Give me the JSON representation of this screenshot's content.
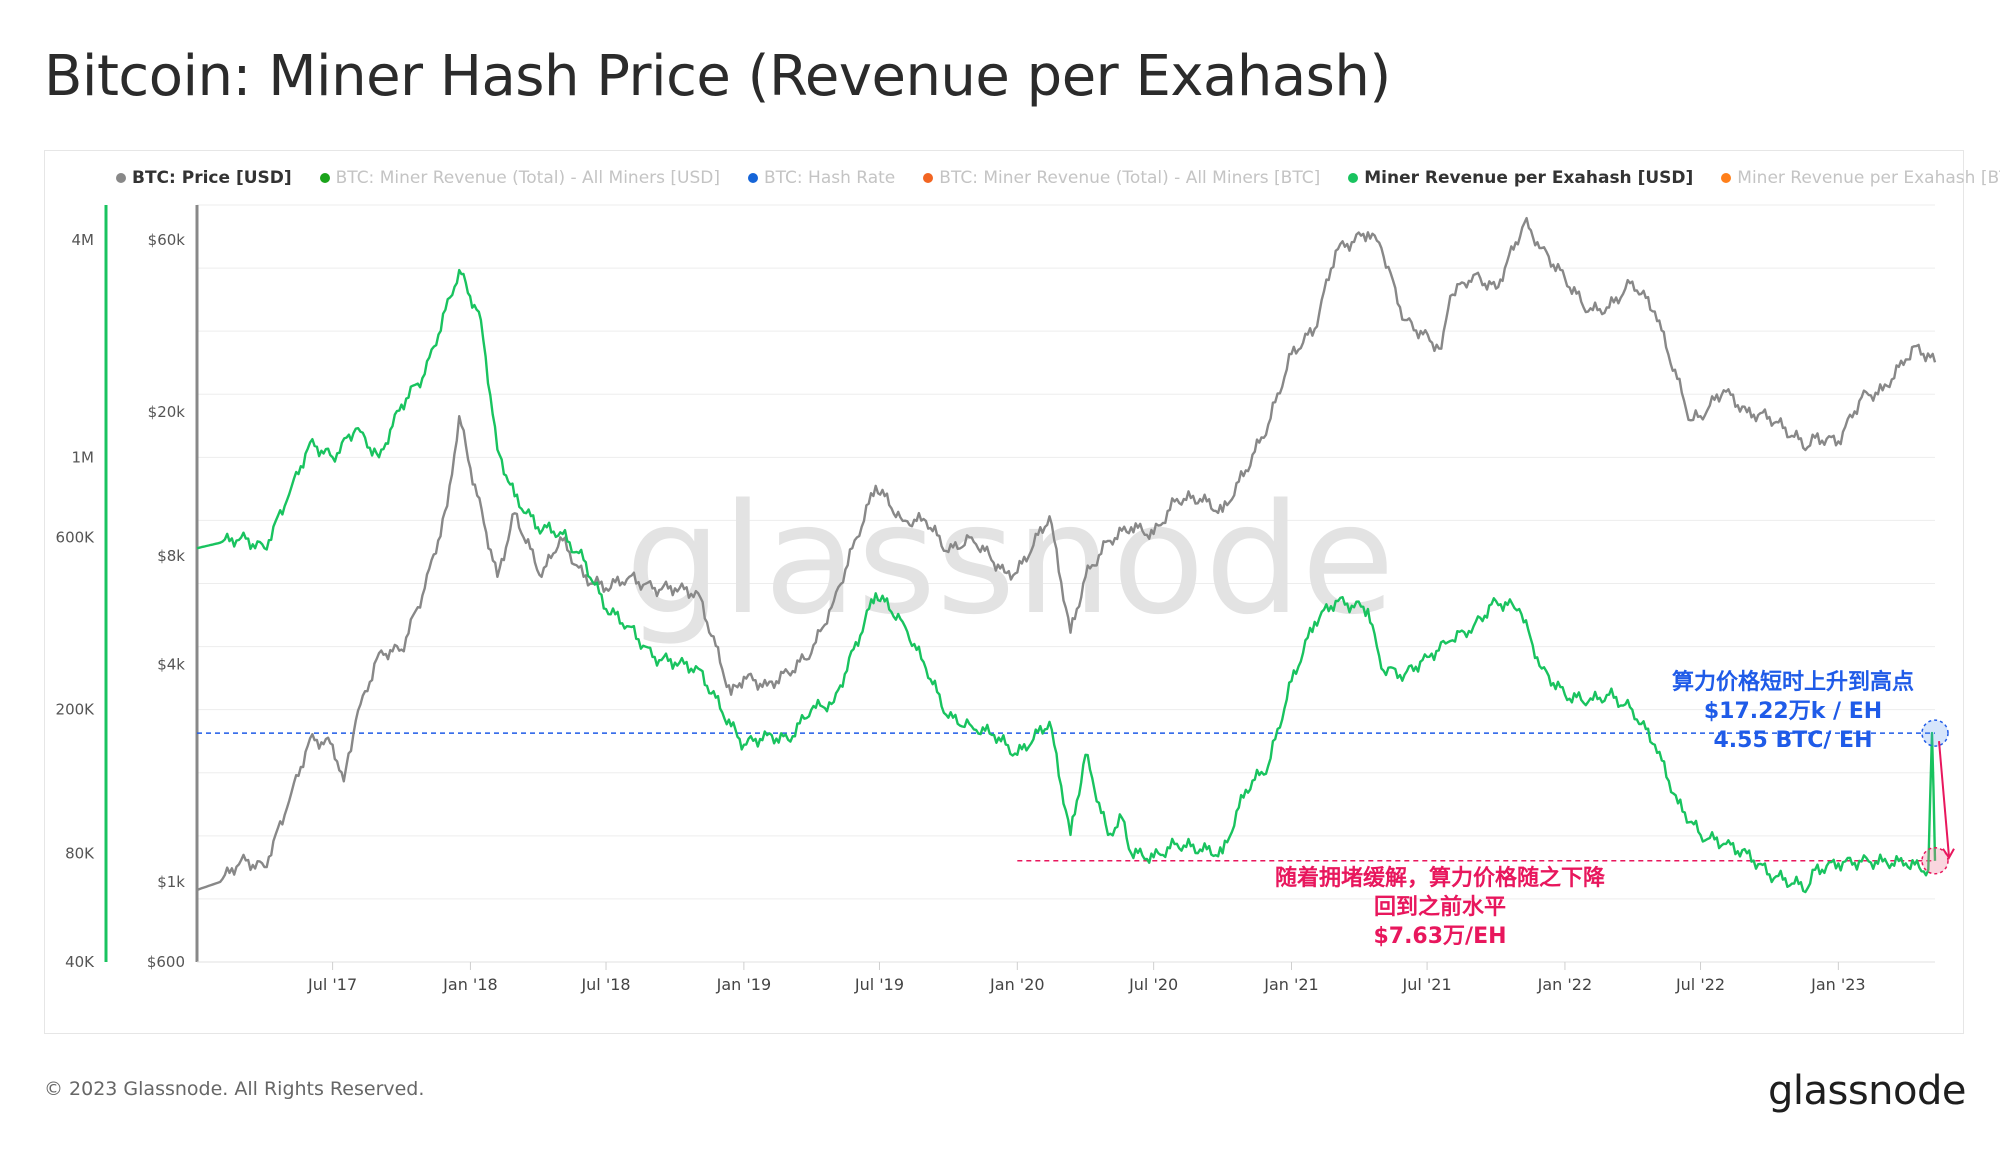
{
  "title": "Bitcoin: Miner Hash Price (Revenue per Exahash)",
  "legend": [
    {
      "label": "BTC: Price [USD]",
      "color": "#888888",
      "state": "active"
    },
    {
      "label": "BTC: Miner Revenue (Total) - All Miners [USD]",
      "color": "#1aa31a",
      "state": "faded"
    },
    {
      "label": "BTC: Hash Rate",
      "color": "#1565d8",
      "state": "faded"
    },
    {
      "label": "BTC: Miner Revenue (Total) - All Miners [BTC]",
      "color": "#f26522",
      "state": "faded"
    },
    {
      "label": "Miner Revenue per Exahash [USD]",
      "color": "#19c35f",
      "state": "active"
    },
    {
      "label": "Miner Revenue per Exahash [BTC]",
      "color": "#ff7f1a",
      "state": "faded"
    }
  ],
  "watermark": "glassnode",
  "footer": "© 2023 Glassnode. All Rights Reserved.",
  "brand": "glassnode",
  "annotations": {
    "blue": {
      "line1": "算力价格短时上升到高点",
      "line2": "$17.22万k / EH",
      "line3": "4.55 BTC/ EH",
      "color": "#1f5be8"
    },
    "pink": {
      "line1": "随着拥堵缓解，算力价格随之下降",
      "line2": "回到之前水平",
      "line3": "$7.63万/EH",
      "color": "#e8175d"
    }
  },
  "chart_data": {
    "type": "line",
    "x_ticks": [
      "Jul '17",
      "Jan '18",
      "Jul '18",
      "Jan '19",
      "Jul '19",
      "Jan '20",
      "Jul '20",
      "Jan '21",
      "Jul '21",
      "Jan '22",
      "Jul '22",
      "Jan '23"
    ],
    "x_tick_dates": [
      "2017-07-01",
      "2018-01-01",
      "2018-07-01",
      "2019-01-01",
      "2019-07-01",
      "2020-01-01",
      "2020-07-01",
      "2021-01-01",
      "2021-07-01",
      "2022-01-01",
      "2022-07-01",
      "2023-01-01"
    ],
    "x_range": [
      "2017-01-01",
      "2023-05-10"
    ],
    "y_left_scale": "log",
    "y_left_range": [
      40000,
      5000000
    ],
    "y_left_ticks": [
      "4M",
      "1M",
      "600K",
      "200K",
      "80K",
      "40K"
    ],
    "y_left_tick_values": [
      4000000,
      1000000,
      600000,
      200000,
      80000,
      40000
    ],
    "y_right_scale": "log",
    "y_right_range": [
      600,
      75000
    ],
    "y_right_ticks": [
      "$60k",
      "$20k",
      "$8k",
      "$4k",
      "$1k",
      "$600"
    ],
    "y_right_tick_values": [
      60000,
      20000,
      8000,
      4000,
      1000,
      600
    ],
    "reference_lines": [
      {
        "value": 172200,
        "axis": "left",
        "color": "#1f5be8",
        "style": "dashed"
      },
      {
        "value": 76300,
        "axis": "left",
        "color": "#e8175d",
        "style": "dashed"
      }
    ],
    "series": [
      {
        "name": "BTC: Price [USD]",
        "axis": "right",
        "color": "#888888",
        "dates": [
          "2017-01-01",
          "2017-02-01",
          "2017-03-01",
          "2017-04-01",
          "2017-05-01",
          "2017-06-01",
          "2017-07-01",
          "2017-07-16",
          "2017-08-01",
          "2017-09-01",
          "2017-10-01",
          "2017-11-01",
          "2017-12-01",
          "2017-12-17",
          "2018-01-01",
          "2018-02-06",
          "2018-03-01",
          "2018-04-06",
          "2018-05-01",
          "2018-06-01",
          "2018-07-01",
          "2018-08-01",
          "2018-09-01",
          "2018-10-01",
          "2018-11-01",
          "2018-12-15",
          "2019-01-01",
          "2019-02-01",
          "2019-03-01",
          "2019-04-01",
          "2019-05-01",
          "2019-06-01",
          "2019-06-26",
          "2019-08-01",
          "2019-09-01",
          "2019-10-01",
          "2019-11-01",
          "2019-12-15",
          "2020-01-01",
          "2020-02-13",
          "2020-03-12",
          "2020-04-01",
          "2020-05-01",
          "2020-06-01",
          "2020-07-01",
          "2020-08-01",
          "2020-09-01",
          "2020-10-01",
          "2020-11-01",
          "2020-12-01",
          "2021-01-01",
          "2021-02-01",
          "2021-03-01",
          "2021-04-13",
          "2021-05-01",
          "2021-06-01",
          "2021-07-20",
          "2021-08-01",
          "2021-09-01",
          "2021-10-01",
          "2021-11-08",
          "2021-12-01",
          "2022-01-01",
          "2022-02-01",
          "2022-03-01",
          "2022-04-01",
          "2022-05-01",
          "2022-06-18",
          "2022-07-01",
          "2022-08-01",
          "2022-09-01",
          "2022-10-01",
          "2022-11-21",
          "2022-12-01",
          "2023-01-01",
          "2023-02-01",
          "2023-03-01",
          "2023-04-01",
          "2023-04-15",
          "2023-05-10"
        ],
        "values": [
          950,
          1000,
          1150,
          1100,
          1600,
          2500,
          2400,
          1900,
          2800,
          4300,
          4400,
          6500,
          11000,
          19500,
          14000,
          7000,
          10500,
          7000,
          9000,
          7000,
          6500,
          7000,
          6500,
          6500,
          6300,
          3300,
          3700,
          3500,
          3800,
          4300,
          6000,
          9000,
          12500,
          10000,
          10000,
          8200,
          9000,
          7200,
          7200,
          10300,
          4900,
          7000,
          8800,
          9600,
          9200,
          11500,
          11500,
          10600,
          13800,
          18500,
          29000,
          34000,
          56000,
          63000,
          57000,
          36000,
          30000,
          42000,
          48000,
          44000,
          67000,
          57000,
          47000,
          38000,
          39000,
          46000,
          38000,
          19000,
          19500,
          23000,
          20000,
          19400,
          16000,
          17000,
          16600,
          22000,
          23000,
          28000,
          30500,
          27500
        ]
      },
      {
        "name": "Miner Revenue per Exahash [USD]",
        "axis": "left",
        "color": "#19c35f",
        "dates": [
          "2017-01-01",
          "2017-02-01",
          "2017-03-01",
          "2017-04-01",
          "2017-05-01",
          "2017-06-01",
          "2017-07-01",
          "2017-08-01",
          "2017-09-01",
          "2017-10-01",
          "2017-11-01",
          "2017-12-17",
          "2018-01-15",
          "2018-02-06",
          "2018-03-01",
          "2018-04-01",
          "2018-05-01",
          "2018-06-01",
          "2018-07-01",
          "2018-08-01",
          "2018-09-01",
          "2018-10-01",
          "2018-11-01",
          "2018-12-15",
          "2019-01-01",
          "2019-02-01",
          "2019-03-01",
          "2019-04-01",
          "2019-05-01",
          "2019-06-26",
          "2019-08-01",
          "2019-09-01",
          "2019-10-01",
          "2019-11-01",
          "2019-12-01",
          "2020-01-01",
          "2020-02-13",
          "2020-03-12",
          "2020-04-01",
          "2020-05-01",
          "2020-05-20",
          "2020-06-01",
          "2020-07-01",
          "2020-08-01",
          "2020-09-01",
          "2020-10-01",
          "2020-11-01",
          "2020-12-01",
          "2021-01-01",
          "2021-02-01",
          "2021-03-01",
          "2021-04-13",
          "2021-05-01",
          "2021-06-01",
          "2021-07-01",
          "2021-08-01",
          "2021-09-01",
          "2021-10-01",
          "2021-11-01",
          "2021-12-01",
          "2022-01-01",
          "2022-02-01",
          "2022-03-01",
          "2022-04-01",
          "2022-05-01",
          "2022-06-01",
          "2022-07-01",
          "2022-08-01",
          "2022-09-01",
          "2022-10-01",
          "2022-11-21",
          "2022-12-01",
          "2023-01-01",
          "2023-02-01",
          "2023-03-01",
          "2023-04-01",
          "2023-05-01",
          "2023-05-06",
          "2023-05-10"
        ],
        "values": [
          560000,
          580000,
          600000,
          560000,
          760000,
          1100000,
          1000000,
          1200000,
          1000000,
          1400000,
          1700000,
          3300000,
          2400000,
          1050000,
          780000,
          640000,
          620000,
          520000,
          380000,
          340000,
          280000,
          270000,
          260000,
          180000,
          160000,
          170000,
          165000,
          200000,
          210000,
          420000,
          350000,
          260000,
          190000,
          180000,
          170000,
          150000,
          185000,
          90000,
          150000,
          90000,
          100000,
          80000,
          78000,
          85000,
          82000,
          80000,
          120000,
          140000,
          240000,
          350000,
          400000,
          380000,
          260000,
          250000,
          280000,
          310000,
          340000,
          400000,
          380000,
          260000,
          220000,
          210000,
          220000,
          200000,
          160000,
          110000,
          90000,
          85000,
          80000,
          70000,
          64000,
          72000,
          75000,
          76000,
          76000,
          75000,
          72000,
          172200,
          76300
        ]
      }
    ]
  }
}
